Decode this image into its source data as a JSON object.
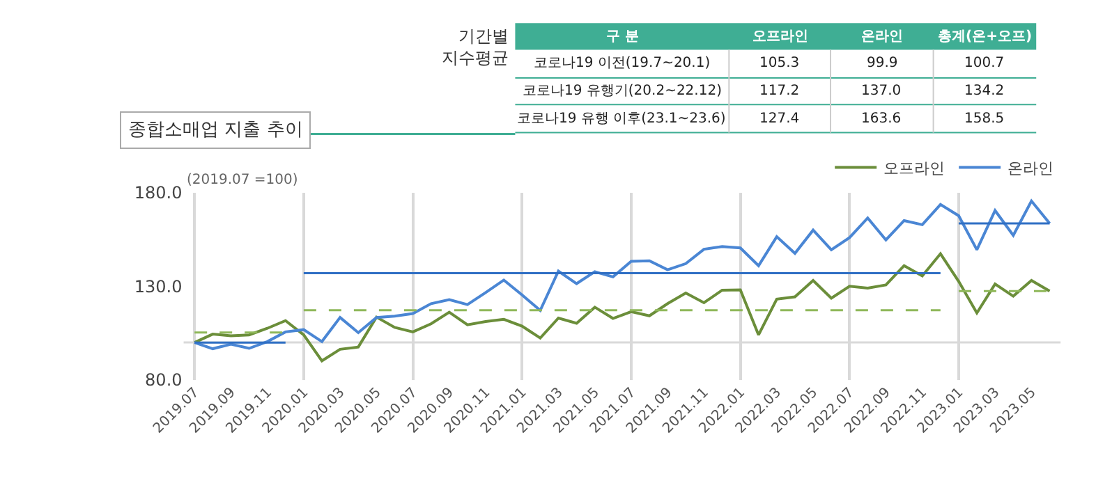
{
  "chart_data": [
    {
      "type": "line",
      "title": "종합소매업 지출 추이",
      "annotations": [
        "(2019.07 =100)"
      ],
      "categories": [
        "2019.07",
        null,
        "2019.09",
        null,
        "2019.11",
        null,
        "2020.01",
        null,
        "2020.03",
        null,
        "2020.05",
        null,
        "2020.07",
        null,
        "2020.09",
        null,
        "2020.11",
        null,
        "2021.01",
        null,
        "2021.03",
        null,
        "2021.05",
        null,
        "2021.07",
        null,
        "2021.09",
        null,
        "2021.11",
        null,
        "2022.01",
        null,
        "2022.03",
        null,
        "2022.05",
        null,
        "2022.07",
        null,
        "2022.09",
        null,
        "2022.11",
        null,
        "2023.01",
        null,
        "2023.03",
        null,
        "2023.05",
        null
      ],
      "series": [
        {
          "name": "오프라인",
          "color": "#6b8e3a",
          "values": [
            99.9,
            104.4,
            103.5,
            104,
            107.5,
            111.6,
            104,
            90.1,
            96.3,
            97.5,
            113.5,
            108,
            105.6,
            109.9,
            116.1,
            109.4,
            111.1,
            112.3,
            108.7,
            102.3,
            113,
            110.2,
            118.8,
            112.8,
            116.4,
            114.2,
            120.7,
            126.4,
            121.2,
            127.9,
            128.1,
            104,
            123.1,
            124.3,
            133.1,
            123.6,
            130,
            129,
            130.7,
            141,
            135.5,
            147.4,
            132.6,
            115.7,
            131.2,
            124.7,
            133.1,
            127.4
          ]
        },
        {
          "name": "온라인",
          "color": "#4a86d4",
          "values": [
            99.9,
            96.6,
            99,
            96.8,
            100.4,
            105.6,
            106.8,
            100.4,
            113.3,
            105.2,
            113.3,
            114,
            115.4,
            120.7,
            122.8,
            120.2,
            126.6,
            133.3,
            125.4,
            117.1,
            138.1,
            131.4,
            137.8,
            135,
            143.3,
            143.6,
            138.8,
            142.1,
            149.8,
            151.2,
            150.5,
            141,
            156.5,
            147.6,
            160,
            149.5,
            156,
            166.5,
            154.8,
            165.1,
            162.9,
            173.7,
            167.7,
            149.5,
            170.5,
            157.2,
            175.6,
            163.6
          ]
        },
        {
          "color": "#8fb85a",
          "line_style": "dashed",
          "values": [
            105.3,
            105.3,
            105.3,
            105.3,
            105.3,
            105.3,
            null,
            null,
            null,
            null,
            null,
            null,
            null,
            null,
            null,
            null,
            null,
            null,
            null,
            null,
            null,
            null,
            null,
            null,
            null,
            null,
            null,
            null,
            null,
            null,
            null,
            null,
            null,
            null,
            null,
            null,
            null,
            null,
            null,
            null,
            null,
            null,
            null,
            null,
            null,
            null,
            null,
            null
          ]
        },
        {
          "color": "#8fb85a",
          "line_style": "dashed",
          "values": [
            null,
            null,
            null,
            null,
            null,
            null,
            117.2,
            117.2,
            117.2,
            117.2,
            117.2,
            117.2,
            117.2,
            117.2,
            117.2,
            117.2,
            117.2,
            117.2,
            117.2,
            117.2,
            117.2,
            117.2,
            117.2,
            117.2,
            117.2,
            117.2,
            117.2,
            117.2,
            117.2,
            117.2,
            117.2,
            117.2,
            117.2,
            117.2,
            117.2,
            117.2,
            117.2,
            117.2,
            117.2,
            117.2,
            117.2,
            117.2,
            null,
            null,
            null,
            null,
            null,
            null
          ]
        },
        {
          "color": "#8fb85a",
          "line_style": "dashed",
          "values": [
            null,
            null,
            null,
            null,
            null,
            null,
            null,
            null,
            null,
            null,
            null,
            null,
            null,
            null,
            null,
            null,
            null,
            null,
            null,
            null,
            null,
            null,
            null,
            null,
            null,
            null,
            null,
            null,
            null,
            null,
            null,
            null,
            null,
            null,
            null,
            null,
            null,
            null,
            null,
            null,
            null,
            null,
            127.4,
            127.4,
            127.4,
            127.4,
            127.4,
            127.4
          ]
        },
        {
          "color": "#2f6fc4",
          "line_style": "solid",
          "values": [
            99.9,
            99.9,
            99.9,
            99.9,
            99.9,
            99.9,
            null,
            null,
            null,
            null,
            null,
            null,
            null,
            null,
            null,
            null,
            null,
            null,
            null,
            null,
            null,
            null,
            null,
            null,
            null,
            null,
            null,
            null,
            null,
            null,
            null,
            null,
            null,
            null,
            null,
            null,
            null,
            null,
            null,
            null,
            null,
            null,
            null,
            null,
            null,
            null,
            null,
            null
          ]
        },
        {
          "color": "#2f6fc4",
          "line_style": "solid",
          "values": [
            null,
            null,
            null,
            null,
            null,
            null,
            137,
            137,
            137,
            137,
            137,
            137,
            137,
            137,
            137,
            137,
            137,
            137,
            137,
            137,
            137,
            137,
            137,
            137,
            137,
            137,
            137,
            137,
            137,
            137,
            137,
            137,
            137,
            137,
            137,
            137,
            137,
            137,
            137,
            137,
            137,
            137,
            null,
            null,
            null,
            null,
            null,
            null
          ]
        },
        {
          "color": "#2f6fc4",
          "line_style": "solid",
          "values": [
            null,
            null,
            null,
            null,
            null,
            null,
            null,
            null,
            null,
            null,
            null,
            null,
            null,
            null,
            null,
            null,
            null,
            null,
            null,
            null,
            null,
            null,
            null,
            null,
            null,
            null,
            null,
            null,
            null,
            null,
            null,
            null,
            null,
            null,
            null,
            null,
            null,
            null,
            null,
            null,
            null,
            null,
            163.6,
            163.6,
            163.6,
            163.6,
            163.6,
            163.6
          ]
        }
      ],
      "ylim": [
        80,
        180
      ],
      "yticks": [
        {
          "value": 80,
          "label": "80.0"
        },
        {
          "value": 130,
          "label": "130.0"
        },
        {
          "value": 180,
          "label": "180.0"
        }
      ],
      "ref_lines": [
        {
          "axis": "y",
          "value": 100,
          "color": "#d9d9d9"
        }
      ],
      "grid": "x",
      "legend": "top right",
      "marker": "none",
      "line_style": "solid"
    },
    {
      "type": "other",
      "title": "기간별\n지수평균",
      "ylabel": "구 분",
      "categories": [
        "코로나19 이전(19.7~20.1)",
        "코로나19 유행기(20.2~22.12)",
        "코로나19 유행 이후(23.1~23.6)"
      ],
      "series": [
        {
          "name": "오프라인",
          "values": [
            105.3,
            117.2,
            127.4
          ]
        },
        {
          "name": "온라인",
          "values": [
            99.9,
            137.0,
            163.6
          ],
          "value_labels": [
            "99.9",
            "137.0",
            "163.6"
          ]
        },
        {
          "name": "총계(온+오프)",
          "values": [
            100.7,
            134.2,
            158.5
          ]
        }
      ],
      "data_labels": true
    }
  ]
}
